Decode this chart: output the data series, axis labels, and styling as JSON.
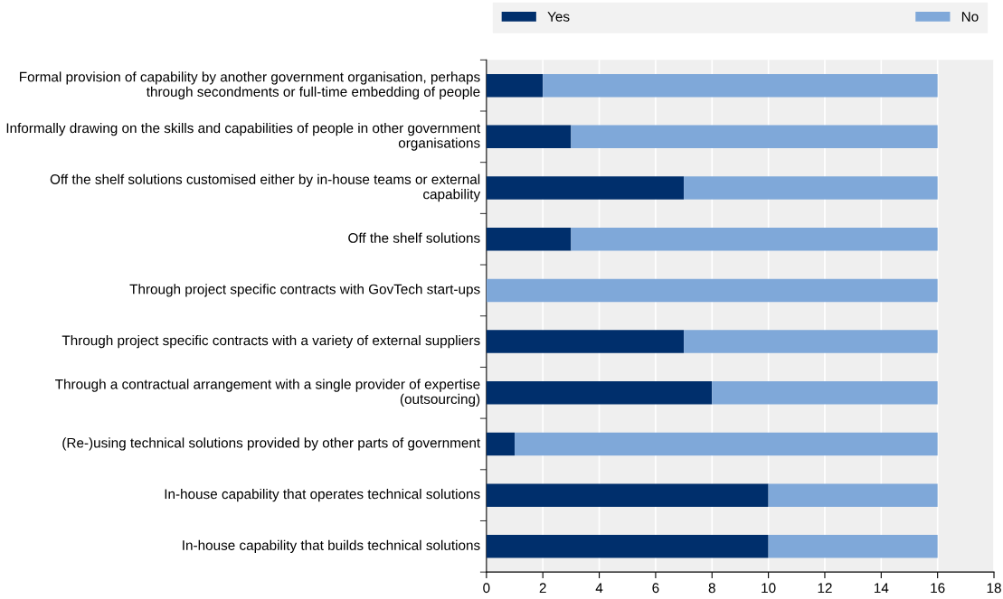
{
  "chart_data": {
    "type": "bar",
    "orientation": "horizontal",
    "stacked": true,
    "categories": [
      "Formal provision of capability by another government organisation, perhaps through secondments or full-time embedding of people",
      "Informally drawing on the skills and capabilities of people in other government organisations",
      "Off the shelf solutions customised either by in-house teams or external capability",
      "Off the shelf solutions",
      "Through project specific contracts with GovTech start-ups",
      "Through project specific contracts with a variety of external suppliers",
      "Through a contractual arrangement with a single provider of expertise (outsourcing)",
      "(Re-)using technical solutions provided by other parts of government",
      "In-house capability that operates technical solutions",
      "In-house capability that builds technical solutions"
    ],
    "series": [
      {
        "name": "Yes",
        "color": "#002f6c",
        "values": [
          2,
          3,
          7,
          3,
          0,
          7,
          8,
          1,
          10,
          10
        ]
      },
      {
        "name": "No",
        "color": "#7fa8d9",
        "values": [
          14,
          13,
          9,
          13,
          16,
          9,
          8,
          15,
          6,
          6
        ]
      }
    ],
    "xlim": [
      0,
      18
    ],
    "xticks": [
      0,
      2,
      4,
      6,
      8,
      10,
      12,
      14,
      16,
      18
    ],
    "grid": "x",
    "legend": "top"
  }
}
